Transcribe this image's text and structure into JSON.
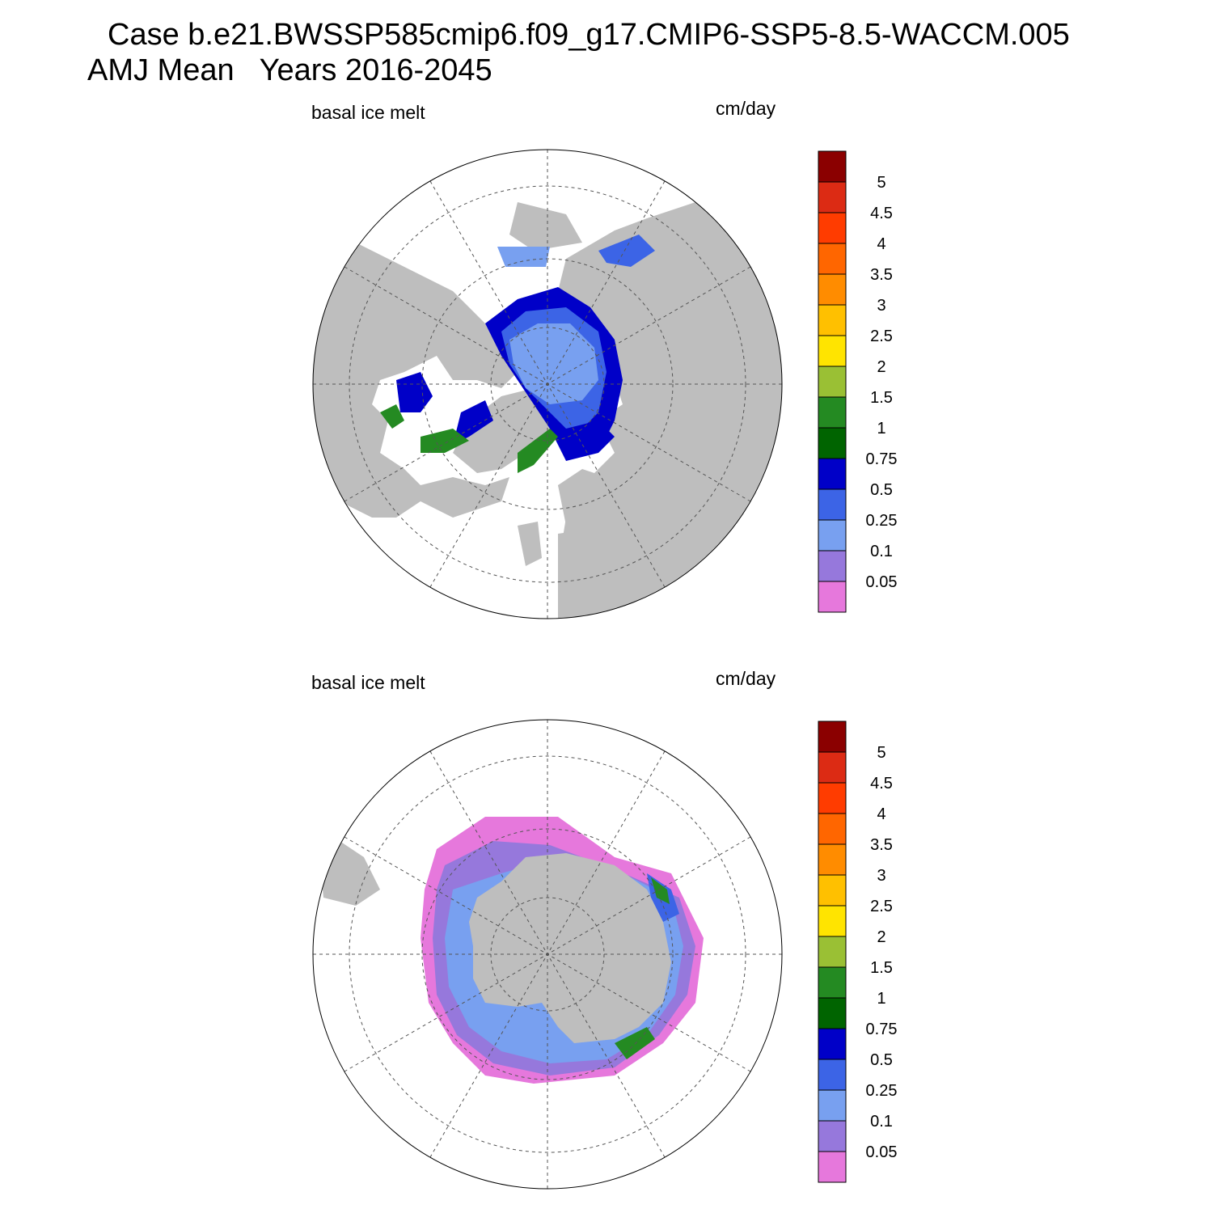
{
  "title": {
    "line1": "Case b.e21.BWSSP585cmip6.f09_g17.CMIP6-SSP5-8.5-WACCM.005",
    "line2": "AMJ Mean   Years 2016-2045"
  },
  "panels": [
    {
      "id": "north",
      "hemisphere": "Northern Hemisphere (polar stereographic)",
      "left_label": "basal ice melt",
      "units": "cm/day"
    },
    {
      "id": "south",
      "hemisphere": "Southern Hemisphere (polar stereographic)",
      "left_label": "basal ice melt",
      "units": "cm/day"
    }
  ],
  "colorbar": {
    "labels": [
      "5",
      "4.5",
      "4",
      "3.5",
      "3",
      "2.5",
      "2",
      "1.5",
      "1",
      "0.75",
      "0.5",
      "0.25",
      "0.1",
      "0.05"
    ],
    "colors_top_to_bottom": [
      "#8b0000",
      "#dc2b14",
      "#ff3c00",
      "#ff6600",
      "#ff8c00",
      "#ffc000",
      "#ffe400",
      "#9ac034",
      "#248a22",
      "#006400",
      "#0000c8",
      "#3c64e6",
      "#78a0f0",
      "#9678dc",
      "#e678dc"
    ]
  },
  "colors": {
    "land": "#bebebe",
    "grid": "#555555",
    "outline": "#000000"
  }
}
